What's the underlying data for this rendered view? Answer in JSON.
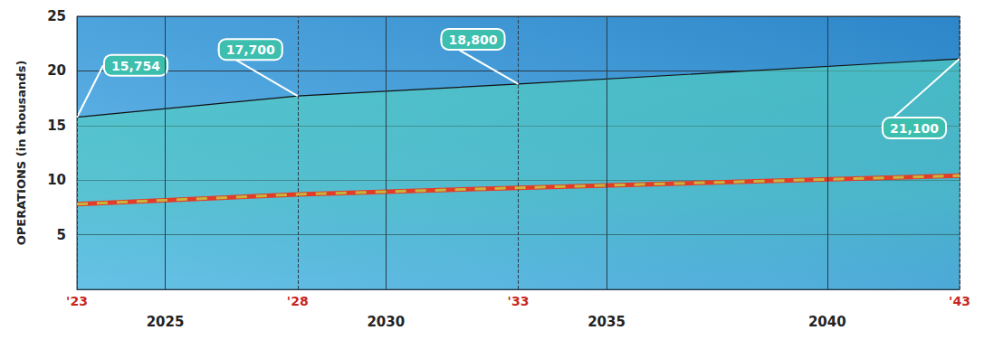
{
  "chart_data": {
    "type": "line",
    "y_label": "OPERATIONS (in thousands)",
    "x": [
      2023,
      2028,
      2033,
      2043
    ],
    "series": [
      {
        "type": "area",
        "color": "#111111",
        "values": [
          15.754,
          17.7,
          18.8,
          21.1
        ],
        "data_labels": true,
        "value_labels": [
          "15,754",
          "17,700",
          "18,800",
          "21,100"
        ]
      },
      {
        "type": "line",
        "color": "#e23b2a",
        "line_style": "dashed",
        "values": [
          7.8,
          8.7,
          9.3,
          10.4
        ]
      }
    ],
    "xlim": [
      2023,
      2043
    ],
    "xticks": [
      {
        "value": 2023,
        "label": "'23"
      },
      2025,
      {
        "value": 2028,
        "label": "'28"
      },
      2030,
      {
        "value": 2033,
        "label": "'33"
      },
      2035,
      2040,
      {
        "value": 2043,
        "label": "'43"
      }
    ],
    "ylim": [
      0,
      25
    ],
    "yticks": [
      5,
      10,
      15,
      20,
      25
    ],
    "grid": true
  }
}
